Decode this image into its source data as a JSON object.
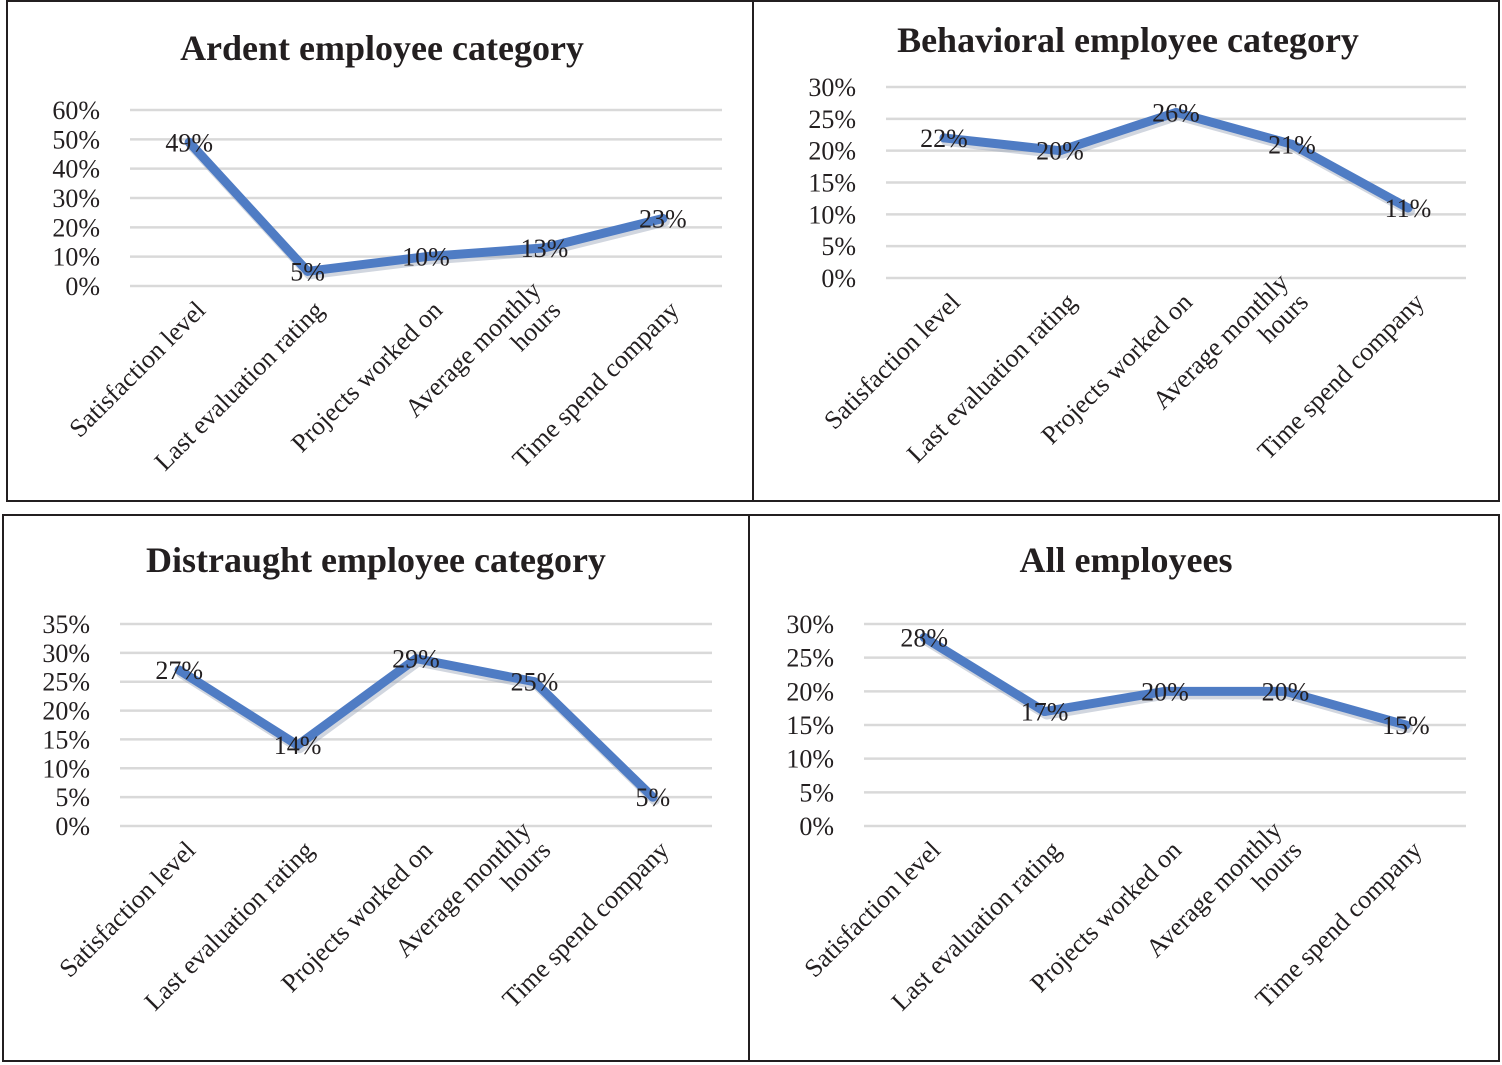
{
  "colors": {
    "line": "#4f7cc4",
    "grid": "#d9d9d9",
    "border": "#231f20"
  },
  "chart_data": [
    {
      "type": "line",
      "title": "Ardent employee category",
      "categories": [
        [
          "Satisfaction level"
        ],
        [
          "Last evaluation rating"
        ],
        [
          "Projects worked on"
        ],
        [
          "Average monthly",
          "hours"
        ],
        [
          "Time spend company"
        ]
      ],
      "values": [
        49,
        5,
        10,
        13,
        23
      ],
      "data_labels": [
        "49%",
        "5%",
        "10%",
        "13%",
        "23%"
      ],
      "yticks": [
        "0%",
        "10%",
        "20%",
        "30%",
        "40%",
        "50%",
        "60%"
      ],
      "ylim": [
        0,
        60
      ],
      "xlabel": "",
      "ylabel": "",
      "grid": true,
      "legend": "none"
    },
    {
      "type": "line",
      "title": "Behavioral employee category",
      "categories": [
        [
          "Satisfaction level"
        ],
        [
          "Last evaluation rating"
        ],
        [
          "Projects worked on"
        ],
        [
          "Average monthly",
          "hours"
        ],
        [
          "Time spend company"
        ]
      ],
      "values": [
        22,
        20,
        26,
        21,
        11
      ],
      "data_labels": [
        "22%",
        "20%",
        "26%",
        "21%",
        "11%"
      ],
      "yticks": [
        "0%",
        "5%",
        "10%",
        "15%",
        "20%",
        "25%",
        "30%"
      ],
      "ylim": [
        0,
        30
      ],
      "xlabel": "",
      "ylabel": "",
      "grid": true,
      "legend": "none"
    },
    {
      "type": "line",
      "title": "Distraught employee category",
      "categories": [
        [
          "Satisfaction level"
        ],
        [
          "Last evaluation rating"
        ],
        [
          "Projects worked on"
        ],
        [
          "Average monthly",
          "hours"
        ],
        [
          "Time spend company"
        ]
      ],
      "values": [
        27,
        14,
        29,
        25,
        5
      ],
      "data_labels": [
        "27%",
        "14%",
        "29%",
        "25%",
        "5%"
      ],
      "yticks": [
        "0%",
        "5%",
        "10%",
        "15%",
        "20%",
        "25%",
        "30%",
        "35%"
      ],
      "ylim": [
        0,
        35
      ],
      "xlabel": "",
      "ylabel": "",
      "grid": true,
      "legend": "none"
    },
    {
      "type": "line",
      "title": "All employees",
      "categories": [
        [
          "Satisfaction level"
        ],
        [
          "Last evaluation rating"
        ],
        [
          "Projects worked on"
        ],
        [
          "Average monthly",
          "hours"
        ],
        [
          "Time spend company"
        ]
      ],
      "values": [
        28,
        17,
        20,
        20,
        15
      ],
      "data_labels": [
        "28%",
        "17%",
        "20%",
        "20%",
        "15%"
      ],
      "yticks": [
        "0%",
        "5%",
        "10%",
        "15%",
        "20%",
        "25%",
        "30%"
      ],
      "ylim": [
        0,
        30
      ],
      "xlabel": "",
      "ylabel": "",
      "grid": true,
      "legend": "none"
    }
  ]
}
